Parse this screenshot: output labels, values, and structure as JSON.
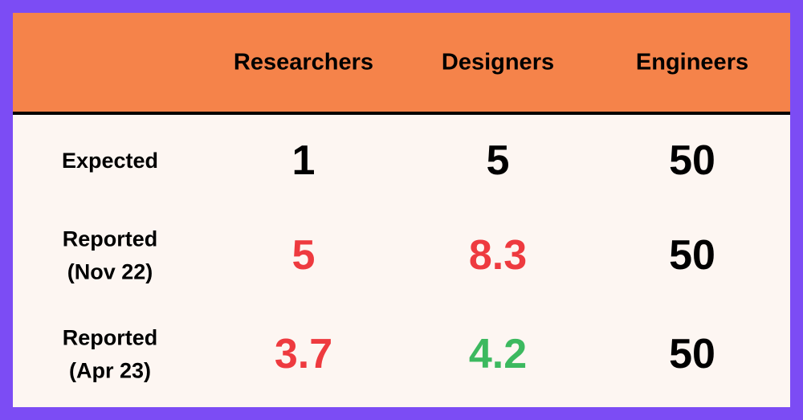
{
  "table": {
    "columns": [
      "Researchers",
      "Designers",
      "Engineers"
    ],
    "rows": [
      {
        "label": "Expected",
        "values": [
          1,
          5,
          50
        ],
        "colors": [
          "#000000",
          "#000000",
          "#000000"
        ]
      },
      {
        "label": "Reported\n(Nov 22)",
        "values": [
          5,
          8.3,
          50
        ],
        "colors": [
          "#ee3a3f",
          "#ee3a3f",
          "#000000"
        ]
      },
      {
        "label": "Reported\n(Apr 23)",
        "values": [
          3.7,
          4.2,
          50
        ],
        "colors": [
          "#ee3a3f",
          "#3cb95f",
          "#000000"
        ]
      }
    ]
  }
}
